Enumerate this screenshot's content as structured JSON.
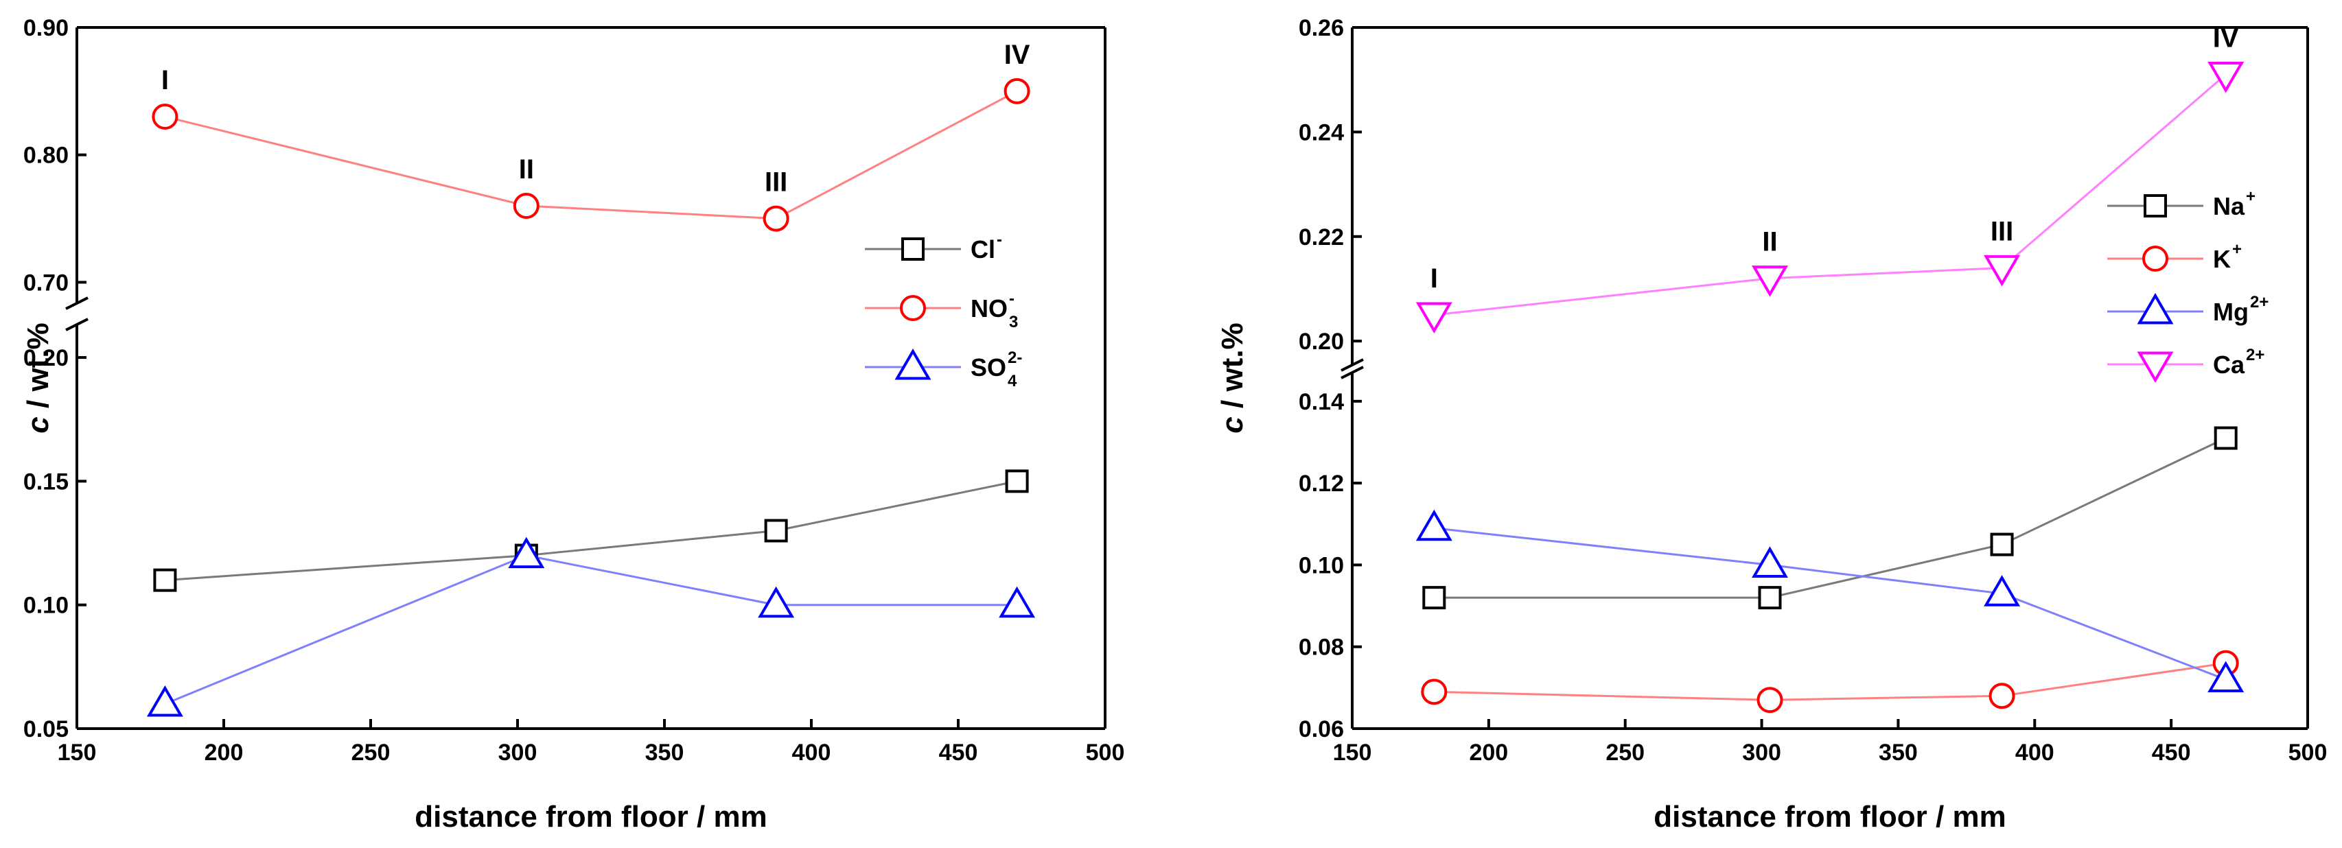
{
  "chart_data": [
    {
      "type": "line",
      "xlabel": "distance from floor / mm",
      "ylabel_italic": "c",
      "ylabel_rest": " / wt.%",
      "xlim": [
        150,
        500
      ],
      "x_ticks": [
        "150",
        "200",
        "250",
        "300",
        "350",
        "400",
        "450",
        "500"
      ],
      "y_break": true,
      "ylim_lower": [
        0.05,
        0.21
      ],
      "ylim_upper": [
        0.69,
        0.9
      ],
      "y_ticks_lower": [
        "0.05",
        "0.10",
        "0.15",
        "0.20"
      ],
      "y_ticks_upper": [
        "0.70",
        "0.80",
        "0.90"
      ],
      "legend_position": "right",
      "x": [
        180,
        303,
        388,
        470
      ],
      "point_labels": [
        {
          "text": "I",
          "x": 180,
          "y": 0.83
        },
        {
          "text": "II",
          "x": 303,
          "y": 0.76
        },
        {
          "text": "III",
          "x": 388,
          "y": 0.75
        },
        {
          "text": "IV",
          "x": 470,
          "y": 0.85
        }
      ],
      "series": [
        {
          "name": "Cl",
          "sup": "-",
          "sub": "",
          "marker": "square",
          "color": "#000000",
          "line_color": "#7a7a7a",
          "values": [
            0.11,
            0.12,
            0.13,
            0.15
          ]
        },
        {
          "name": "NO",
          "sup": "-",
          "sub": "3",
          "marker": "circle",
          "color": "#ff0000",
          "line_color": "#ff8080",
          "values": [
            0.83,
            0.76,
            0.75,
            0.85
          ]
        },
        {
          "name": "SO",
          "sup": "2-",
          "sub": "4",
          "marker": "triangle-up",
          "color": "#0000ff",
          "line_color": "#8080ff",
          "values": [
            0.06,
            0.12,
            0.1,
            0.1
          ]
        }
      ]
    },
    {
      "type": "line",
      "xlabel": "distance from floor / mm",
      "ylabel_italic": "c",
      "ylabel_rest": " / wt.%",
      "xlim": [
        150,
        500
      ],
      "x_ticks": [
        "150",
        "200",
        "250",
        "300",
        "350",
        "400",
        "450",
        "500"
      ],
      "y_break": true,
      "ylim_lower": [
        0.06,
        0.145
      ],
      "ylim_upper": [
        0.197,
        0.26
      ],
      "y_ticks_lower": [
        "0.06",
        "0.08",
        "0.10",
        "0.12",
        "0.14"
      ],
      "y_ticks_upper": [
        "0.20",
        "0.22",
        "0.24",
        "0.26"
      ],
      "legend_position": "right",
      "x": [
        180,
        303,
        388,
        470
      ],
      "point_labels": [
        {
          "text": "I",
          "x": 180,
          "y": 0.205
        },
        {
          "text": "II",
          "x": 303,
          "y": 0.212
        },
        {
          "text": "III",
          "x": 388,
          "y": 0.214
        },
        {
          "text": "IV",
          "x": 470,
          "y": 0.251
        }
      ],
      "series": [
        {
          "name": "Na",
          "sup": "+",
          "sub": "",
          "marker": "square",
          "color": "#000000",
          "line_color": "#7a7a7a",
          "values": [
            0.092,
            0.092,
            0.105,
            0.131
          ]
        },
        {
          "name": "K",
          "sup": "+",
          "sub": "",
          "marker": "circle",
          "color": "#ff0000",
          "line_color": "#ff8080",
          "values": [
            0.069,
            0.067,
            0.068,
            0.076
          ]
        },
        {
          "name": "Mg",
          "sup": "2+",
          "sub": "",
          "marker": "triangle-up",
          "color": "#0000ff",
          "line_color": "#8080ff",
          "values": [
            0.109,
            0.1,
            0.093,
            0.072
          ]
        },
        {
          "name": "Ca",
          "sup": "2+",
          "sub": "",
          "marker": "triangle-down",
          "color": "#ff00ff",
          "line_color": "#ff80ff",
          "values": [
            0.205,
            0.212,
            0.214,
            0.251
          ]
        }
      ]
    }
  ]
}
